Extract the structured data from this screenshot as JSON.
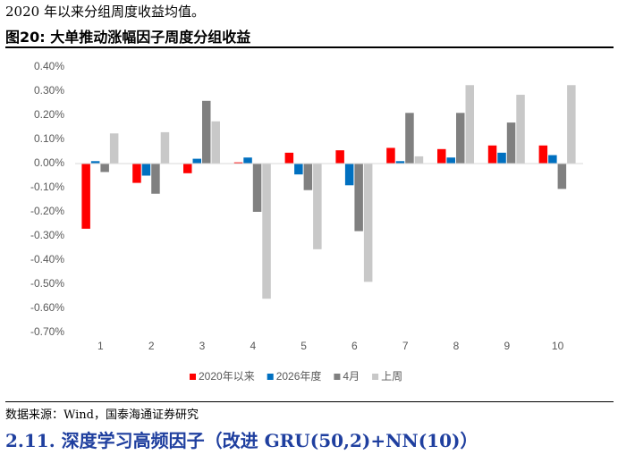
{
  "intro": "2020 年以来分组周度收益均值。",
  "figure_title": "图20:  大单推动涨幅因子周度分组收益",
  "chart_data": {
    "type": "bar",
    "categories": [
      "1",
      "2",
      "3",
      "4",
      "5",
      "6",
      "7",
      "8",
      "9",
      "10"
    ],
    "series": [
      {
        "name": "2020年以来",
        "color": "#ff0000",
        "values": [
          -0.27,
          -0.08,
          -0.04,
          0.005,
          0.045,
          0.055,
          0.065,
          0.06,
          0.075,
          0.075
        ]
      },
      {
        "name": "2026年度",
        "color": "#0070c0",
        "values": [
          0.01,
          -0.05,
          0.02,
          0.025,
          -0.045,
          -0.09,
          0.01,
          0.025,
          0.045,
          0.035
        ]
      },
      {
        "name": "4月",
        "color": "#808080",
        "values": [
          -0.035,
          -0.125,
          0.26,
          -0.2,
          -0.11,
          -0.28,
          0.21,
          0.21,
          0.17,
          -0.105
        ]
      },
      {
        "name": "上周",
        "color": "#c8c8c8",
        "values": [
          0.125,
          0.13,
          0.175,
          -0.56,
          -0.355,
          -0.49,
          0.03,
          0.325,
          0.285,
          0.325
        ]
      }
    ],
    "ylim": [
      -0.7,
      0.4
    ],
    "yticks": [
      {
        "value": 0.4,
        "label": "0.40%"
      },
      {
        "value": 0.3,
        "label": "0.30%"
      },
      {
        "value": 0.2,
        "label": "0.20%"
      },
      {
        "value": 0.1,
        "label": "0.10%"
      },
      {
        "value": 0,
        "label": "0.00%"
      },
      {
        "value": -0.1,
        "label": "-0.10%"
      },
      {
        "value": -0.2,
        "label": "-0.20%"
      },
      {
        "value": -0.3,
        "label": "-0.30%"
      },
      {
        "value": -0.4,
        "label": "-0.40%"
      },
      {
        "value": -0.5,
        "label": "-0.50%"
      },
      {
        "value": -0.6,
        "label": "-0.60%"
      },
      {
        "value": -0.7,
        "label": "-0.70%"
      }
    ],
    "grid": false
  },
  "source": "数据来源：Wind，国泰海通证券研究",
  "section_heading": "2.11. 深度学习高频因子（改进 GRU(50,2)+NN(10)）"
}
